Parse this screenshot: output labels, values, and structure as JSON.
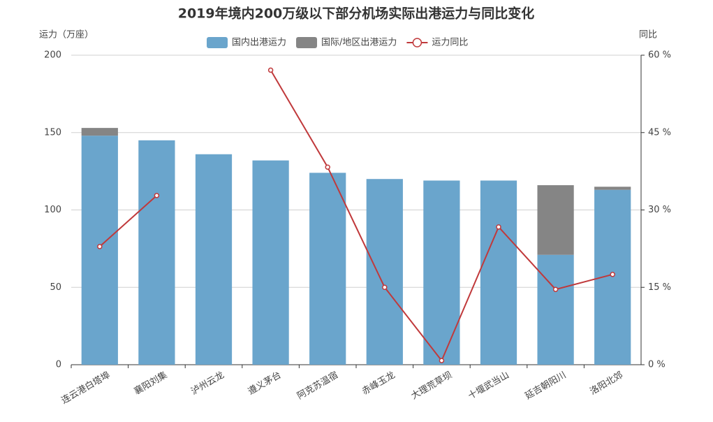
{
  "chart_data": {
    "type": "bar",
    "stacked": true,
    "title": "2019年境内200万级以下部分机场实际出港运力与同比变化",
    "y_label": "运力（万座）",
    "y2_label": "同比",
    "categories": [
      "连云港白塔埠",
      "襄阳刘集",
      "泸州云龙",
      "遵义茅台",
      "阿克苏温宿",
      "赤峰玉龙",
      "大理荒草坝",
      "十堰武当山",
      "延吉朝阳川",
      "洛阳北郊"
    ],
    "series": [
      {
        "name": "国内出港运力",
        "color": "#6aa5cc",
        "values": [
          148,
          145,
          136,
          132,
          124,
          120,
          119,
          119,
          71,
          113
        ]
      },
      {
        "name": "国际/地区出港运力",
        "color": "#858585",
        "values": [
          5,
          0,
          0,
          0,
          0,
          0,
          0,
          0,
          45,
          2
        ]
      },
      {
        "name": "运力同比",
        "type": "line",
        "axis": "y2",
        "color": "#c0393b",
        "values": [
          22.9,
          32.8,
          null,
          57.1,
          38.3,
          15.0,
          0.8,
          26.7,
          14.6,
          17.5
        ]
      }
    ],
    "ylim": [
      0,
      200
    ],
    "yticks": [
      0,
      50,
      100,
      150,
      200
    ],
    "y2lim": [
      0,
      60
    ],
    "y2ticks": [
      {
        "value": 0,
        "label": "0 %"
      },
      {
        "value": 15,
        "label": "15 %"
      },
      {
        "value": 30,
        "label": "30 %"
      },
      {
        "value": 45,
        "label": "45 %"
      },
      {
        "value": 60,
        "label": "60 %"
      }
    ],
    "grid": true
  }
}
